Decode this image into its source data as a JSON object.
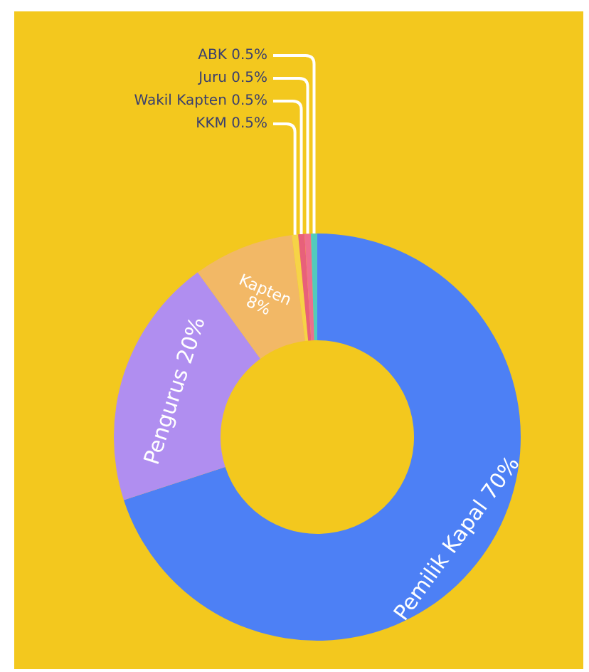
{
  "chart_data": {
    "type": "donut",
    "categories": [
      "Pemilik Kapal",
      "Pengurus",
      "Kapten",
      "KKM",
      "Wakil Kapten",
      "Juru",
      "ABK"
    ],
    "values": [
      70,
      20,
      8,
      0.5,
      0.5,
      0.5,
      0.5
    ],
    "value_labels": [
      "70%",
      "20%",
      "8%",
      "0.5%",
      "0.5%",
      "0.5%",
      "0.5%"
    ],
    "colors": [
      "#4d80f5",
      "#b08ef0",
      "#f2b866",
      "#f6d347",
      "#e8607a",
      "#ee6f8e",
      "#52cbbd"
    ]
  }
}
